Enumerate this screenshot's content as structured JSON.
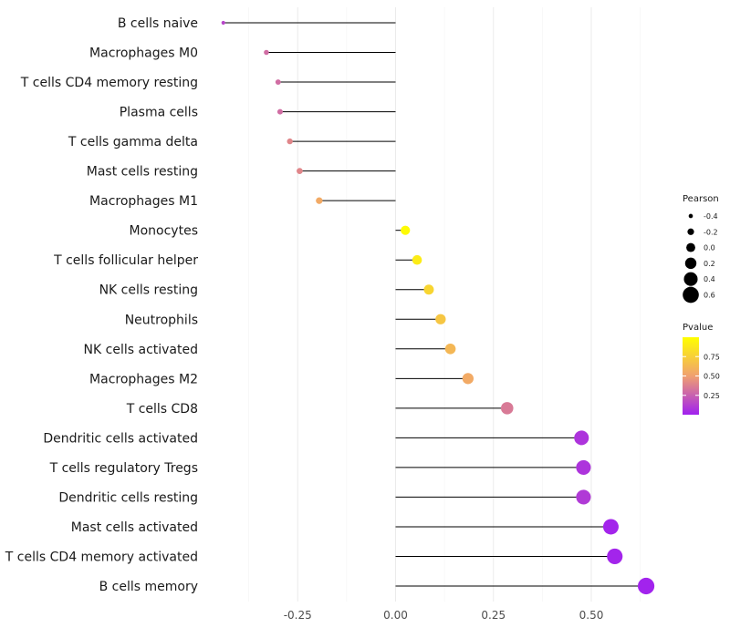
{
  "chart_data": {
    "type": "lollipop",
    "title": "",
    "xlabel": "",
    "ylabel": "",
    "xlim": [
      -0.5,
      0.7
    ],
    "x_ticks": [
      -0.25,
      0.0,
      0.25,
      0.5
    ],
    "x_tick_labels": [
      "-0.25",
      "0.00",
      "0.25",
      "0.50"
    ],
    "grid": true,
    "categories": [
      "B cells naive",
      "Macrophages M0",
      "T cells CD4 memory resting",
      "Plasma cells",
      "T cells gamma delta",
      "Mast cells resting",
      "Macrophages M1",
      "Monocytes",
      "T cells follicular helper",
      "NK cells resting",
      "Neutrophils",
      "NK cells activated",
      "Macrophages M2",
      "T cells CD8",
      "Dendritic cells activated",
      "T cells regulatory  Tregs ",
      "Dendritic cells resting",
      "Mast cells activated",
      "T cells CD4 memory activated",
      "B cells memory"
    ],
    "pearson": [
      -0.44,
      -0.33,
      -0.3,
      -0.295,
      -0.27,
      -0.245,
      -0.195,
      0.025,
      0.055,
      0.085,
      0.115,
      0.14,
      0.185,
      0.285,
      0.475,
      0.48,
      0.48,
      0.55,
      0.56,
      0.64
    ],
    "pvalue": [
      0.15,
      0.3,
      0.3,
      0.3,
      0.4,
      0.4,
      0.55,
      0.98,
      0.9,
      0.78,
      0.7,
      0.62,
      0.55,
      0.35,
      0.08,
      0.08,
      0.1,
      0.02,
      0.02,
      0.01
    ],
    "size_legend": {
      "title": "Pearson",
      "entries": [
        "-0.4",
        "-0.2",
        "0.0",
        "0.2",
        "0.4",
        "0.6"
      ],
      "values": [
        -0.4,
        -0.2,
        0.0,
        0.2,
        0.4,
        0.6
      ]
    },
    "color_legend": {
      "title": "Pvalue",
      "entries": [
        "0.75",
        "0.50",
        "0.25"
      ],
      "values": [
        0.75,
        0.5,
        0.25
      ],
      "range": [
        0.0,
        1.0
      ],
      "low_color": "#a020f0",
      "mid_color": "#f0a070",
      "high_color": "#ffff00"
    }
  }
}
